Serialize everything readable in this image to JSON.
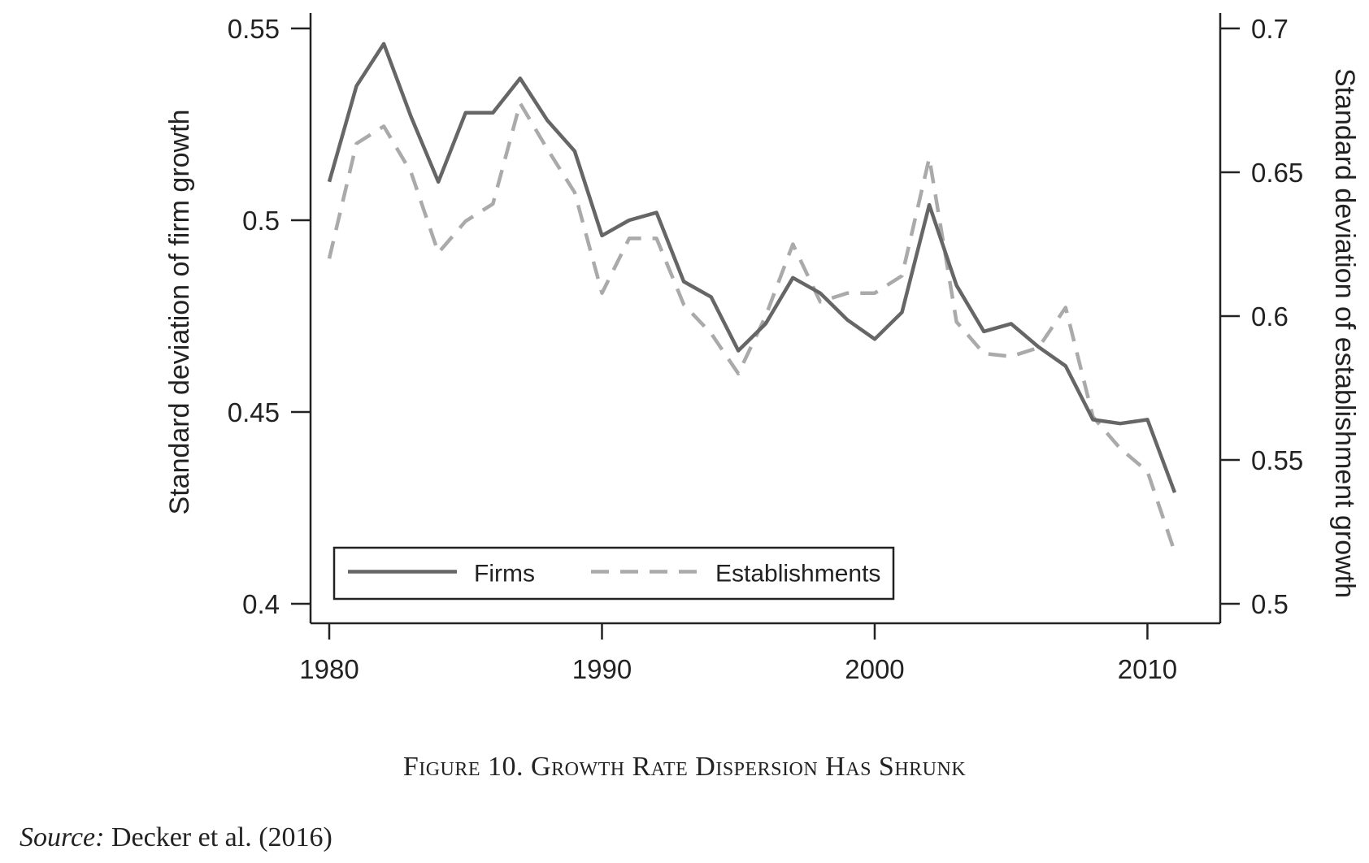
{
  "chart_data": {
    "type": "line",
    "xlabel": "",
    "ylabel_left": "Standard deviation of firm growth",
    "ylabel_right": "Standard deviation of establishment growth",
    "xlim": [
      1980,
      2011
    ],
    "ylim_left": [
      0.4,
      0.55
    ],
    "ylim_right": [
      0.5,
      0.7
    ],
    "x_ticks": [
      1980,
      1990,
      2000,
      2010
    ],
    "y_ticks_left": [
      "0.4",
      "0.45",
      "0.5",
      "0.55"
    ],
    "y_ticks_right": [
      "0.5",
      "0.55",
      "0.6",
      "0.65",
      "0.7"
    ],
    "grid": false,
    "legend_position": "bottom-left",
    "x": [
      1980,
      1981,
      1982,
      1983,
      1984,
      1985,
      1986,
      1987,
      1988,
      1989,
      1990,
      1991,
      1992,
      1993,
      1994,
      1995,
      1996,
      1997,
      1998,
      1999,
      2000,
      2001,
      2002,
      2003,
      2004,
      2005,
      2006,
      2007,
      2008,
      2009,
      2010,
      2011
    ],
    "series": [
      {
        "name": "Firms",
        "axis": "left",
        "style": "solid",
        "color": "#666666",
        "values": [
          0.51,
          0.535,
          0.546,
          0.527,
          0.51,
          0.528,
          0.528,
          0.537,
          0.526,
          0.518,
          0.496,
          0.5,
          0.502,
          0.484,
          0.48,
          0.466,
          0.473,
          0.485,
          0.481,
          0.474,
          0.469,
          0.476,
          0.504,
          0.483,
          0.471,
          0.473,
          0.467,
          0.462,
          0.448,
          0.447,
          0.448,
          0.429
        ]
      },
      {
        "name": "Establishments",
        "axis": "right",
        "style": "dashed",
        "color": "#aaaaaa",
        "values": [
          0.62,
          0.66,
          0.666,
          0.65,
          0.622,
          0.633,
          0.639,
          0.674,
          0.658,
          0.643,
          0.608,
          0.627,
          0.627,
          0.604,
          0.594,
          0.58,
          0.6,
          0.625,
          0.605,
          0.608,
          0.608,
          0.614,
          0.655,
          0.598,
          0.587,
          0.586,
          0.589,
          0.603,
          0.565,
          0.554,
          0.546,
          0.518
        ]
      }
    ]
  },
  "caption": "Figure 10. Growth Rate Dispersion Has Shrunk",
  "source_label": "Source:",
  "source_text": " Decker et al. (2016)"
}
